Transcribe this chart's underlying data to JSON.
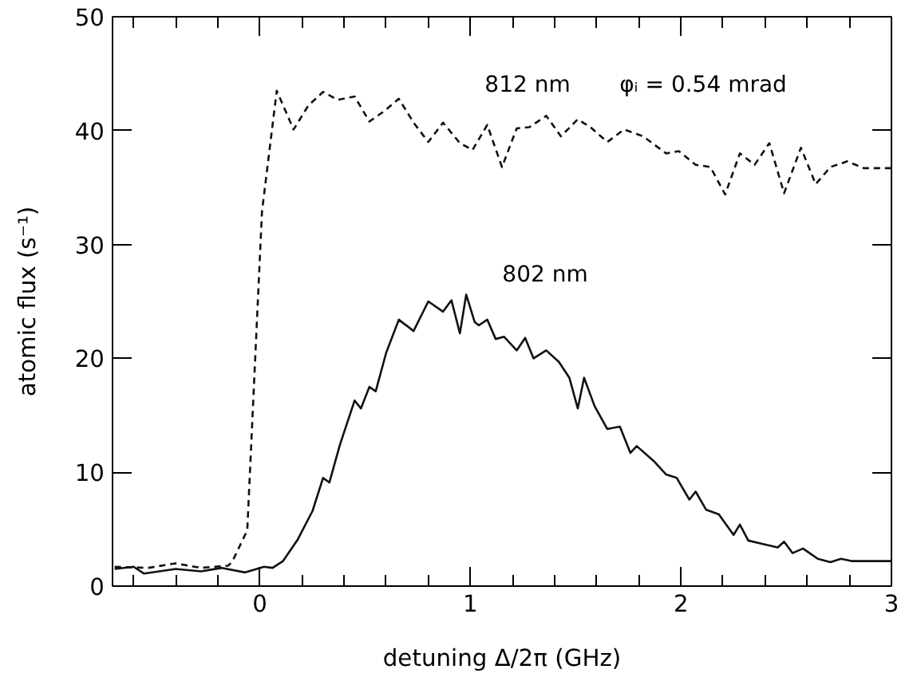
{
  "chart_data": {
    "type": "line",
    "xlabel": "detuning Δ/2π (GHz)",
    "ylabel": "atomic flux (s⁻¹)",
    "xlim": [
      -0.7,
      3
    ],
    "ylim": [
      0,
      50
    ],
    "xticks": [
      {
        "value": -0.6,
        "label": null
      },
      {
        "value": -0.4,
        "label": null
      },
      {
        "value": -0.2,
        "label": null
      },
      0,
      {
        "value": 0.2,
        "label": null
      },
      {
        "value": 0.4,
        "label": null
      },
      {
        "value": 0.6,
        "label": null
      },
      {
        "value": 0.8,
        "label": null
      },
      1,
      {
        "value": 1.2,
        "label": null
      },
      {
        "value": 1.4,
        "label": null
      },
      {
        "value": 1.6,
        "label": null
      },
      {
        "value": 1.8,
        "label": null
      },
      2,
      {
        "value": 2.2,
        "label": null
      },
      {
        "value": 2.4,
        "label": null
      },
      {
        "value": 2.6,
        "label": null
      },
      {
        "value": 2.8,
        "label": null
      },
      3
    ],
    "yticks": [
      0,
      10,
      20,
      30,
      40,
      50
    ],
    "grid": false,
    "marker": "none",
    "series": [
      {
        "color": "#111111",
        "line_style": "dashed",
        "x": [
          -0.69,
          -0.53,
          -0.4,
          -0.28,
          -0.15,
          -0.13,
          -0.06,
          0.01,
          0.08,
          0.16,
          0.23,
          0.3,
          0.37,
          0.45,
          0.52,
          0.59,
          0.66,
          0.73,
          0.8,
          0.87,
          0.95,
          1.01,
          1.08,
          1.15,
          1.22,
          1.28,
          1.36,
          1.43,
          1.51,
          1.57,
          1.65,
          1.73,
          1.82,
          1.93,
          1.99,
          2.07,
          2.14,
          2.21,
          2.28,
          2.35,
          2.42,
          2.49,
          2.57,
          2.64,
          2.71,
          2.79,
          2.87,
          3.0
        ],
        "values": [
          1.7,
          1.6,
          2.0,
          1.6,
          1.8,
          2.2,
          4.9,
          32.9,
          43.5,
          40.1,
          42.2,
          43.4,
          42.7,
          43.0,
          40.8,
          41.7,
          42.8,
          40.7,
          39.0,
          40.7,
          38.9,
          38.3,
          40.5,
          36.8,
          40.2,
          40.3,
          41.3,
          39.5,
          41.0,
          40.3,
          39.0,
          40.1,
          39.5,
          38.0,
          38.2,
          37.0,
          36.8,
          34.4,
          38.0,
          37.0,
          38.9,
          34.5,
          38.5,
          35.3,
          36.8,
          37.3,
          36.7,
          36.7
        ]
      },
      {
        "color": "#111111",
        "line_style": "solid",
        "x": [
          -0.69,
          -0.6,
          -0.55,
          -0.4,
          -0.28,
          -0.18,
          -0.07,
          0.02,
          0.06,
          0.11,
          0.18,
          0.25,
          0.3,
          0.33,
          0.38,
          0.45,
          0.48,
          0.52,
          0.55,
          0.6,
          0.66,
          0.73,
          0.8,
          0.87,
          0.91,
          0.95,
          0.98,
          1.02,
          1.04,
          1.08,
          1.12,
          1.16,
          1.22,
          1.26,
          1.3,
          1.36,
          1.42,
          1.47,
          1.51,
          1.54,
          1.59,
          1.65,
          1.71,
          1.76,
          1.79,
          1.87,
          1.93,
          1.98,
          2.04,
          2.07,
          2.12,
          2.18,
          2.25,
          2.28,
          2.32,
          2.39,
          2.46,
          2.49,
          2.53,
          2.58,
          2.65,
          2.71,
          2.76,
          2.81,
          3.0
        ],
        "values": [
          1.5,
          1.7,
          1.1,
          1.5,
          1.3,
          1.6,
          1.2,
          1.7,
          1.6,
          2.2,
          4.1,
          6.6,
          9.5,
          9.1,
          12.4,
          16.3,
          15.6,
          17.5,
          17.1,
          20.5,
          23.4,
          22.4,
          25.0,
          24.1,
          25.1,
          22.2,
          25.6,
          23.2,
          22.9,
          23.4,
          21.7,
          21.9,
          20.7,
          21.8,
          20.0,
          20.7,
          19.7,
          18.3,
          15.6,
          18.3,
          15.8,
          13.8,
          14.0,
          11.7,
          12.3,
          11.0,
          9.8,
          9.5,
          7.6,
          8.3,
          6.7,
          6.3,
          4.5,
          5.4,
          4.0,
          3.7,
          3.4,
          3.9,
          2.9,
          3.3,
          2.4,
          2.1,
          2.4,
          2.2,
          2.2
        ]
      }
    ],
    "annotations": [
      "812 nm",
      "802 nm",
      "φᵢ = 0.54 mrad"
    ]
  }
}
